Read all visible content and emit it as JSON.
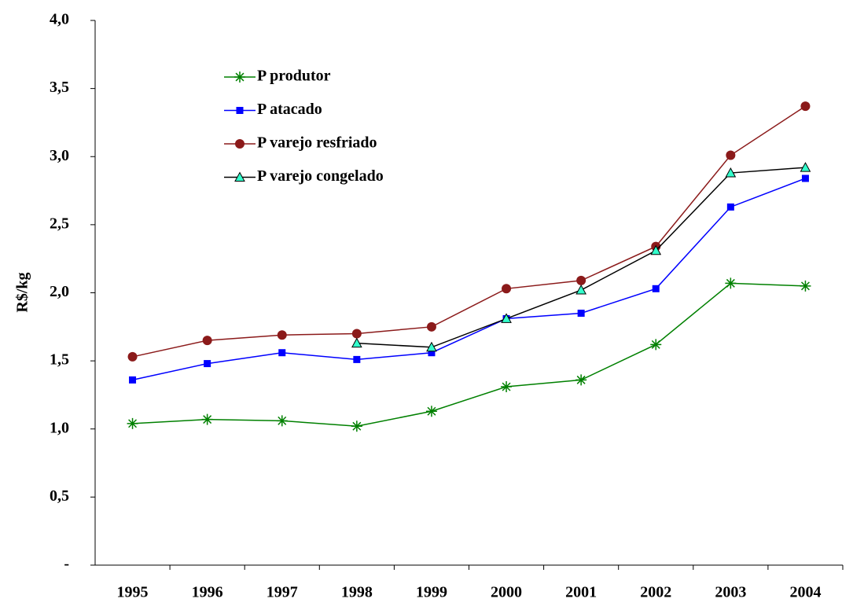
{
  "chart_data": {
    "type": "line",
    "y_label": "R$/kg",
    "categories": [
      "1995",
      "1996",
      "1997",
      "1998",
      "1999",
      "2000",
      "2001",
      "2002",
      "2003",
      "2004"
    ],
    "series": [
      {
        "name": "P produtor",
        "color": "#008000",
        "marker": "asterisk",
        "values": [
          1.04,
          1.07,
          1.06,
          1.02,
          1.13,
          1.31,
          1.36,
          1.62,
          2.07,
          2.05
        ]
      },
      {
        "name": "P atacado",
        "color": "#0000ff",
        "marker": "square",
        "values": [
          1.36,
          1.48,
          1.56,
          1.51,
          1.56,
          1.81,
          1.85,
          2.03,
          2.63,
          2.84
        ]
      },
      {
        "name": "P varejo resfriado",
        "color": "#8b1a1a",
        "marker": "circle",
        "values": [
          1.53,
          1.65,
          1.69,
          1.7,
          1.75,
          2.03,
          2.09,
          2.34,
          3.01,
          3.37
        ]
      },
      {
        "name": "P varejo congelado",
        "color": "#000000",
        "marker": "triangle",
        "marker_color": "#33ffcc",
        "values": [
          null,
          null,
          null,
          1.63,
          1.6,
          1.81,
          2.02,
          2.31,
          2.88,
          2.92
        ]
      }
    ],
    "ylim": [
      0,
      4
    ],
    "yticks": [
      {
        "value": 0,
        "label": "-"
      },
      {
        "value": 0.5,
        "label": "0,5"
      },
      {
        "value": 1,
        "label": "1,0"
      },
      {
        "value": 1.5,
        "label": "1,5"
      },
      {
        "value": 2,
        "label": "2,0"
      },
      {
        "value": 2.5,
        "label": "2,5"
      },
      {
        "value": 3,
        "label": "3,0"
      },
      {
        "value": 3.5,
        "label": "3,5"
      },
      {
        "value": 4,
        "label": "4,0"
      }
    ],
    "grid": false,
    "legend": "upper left"
  }
}
